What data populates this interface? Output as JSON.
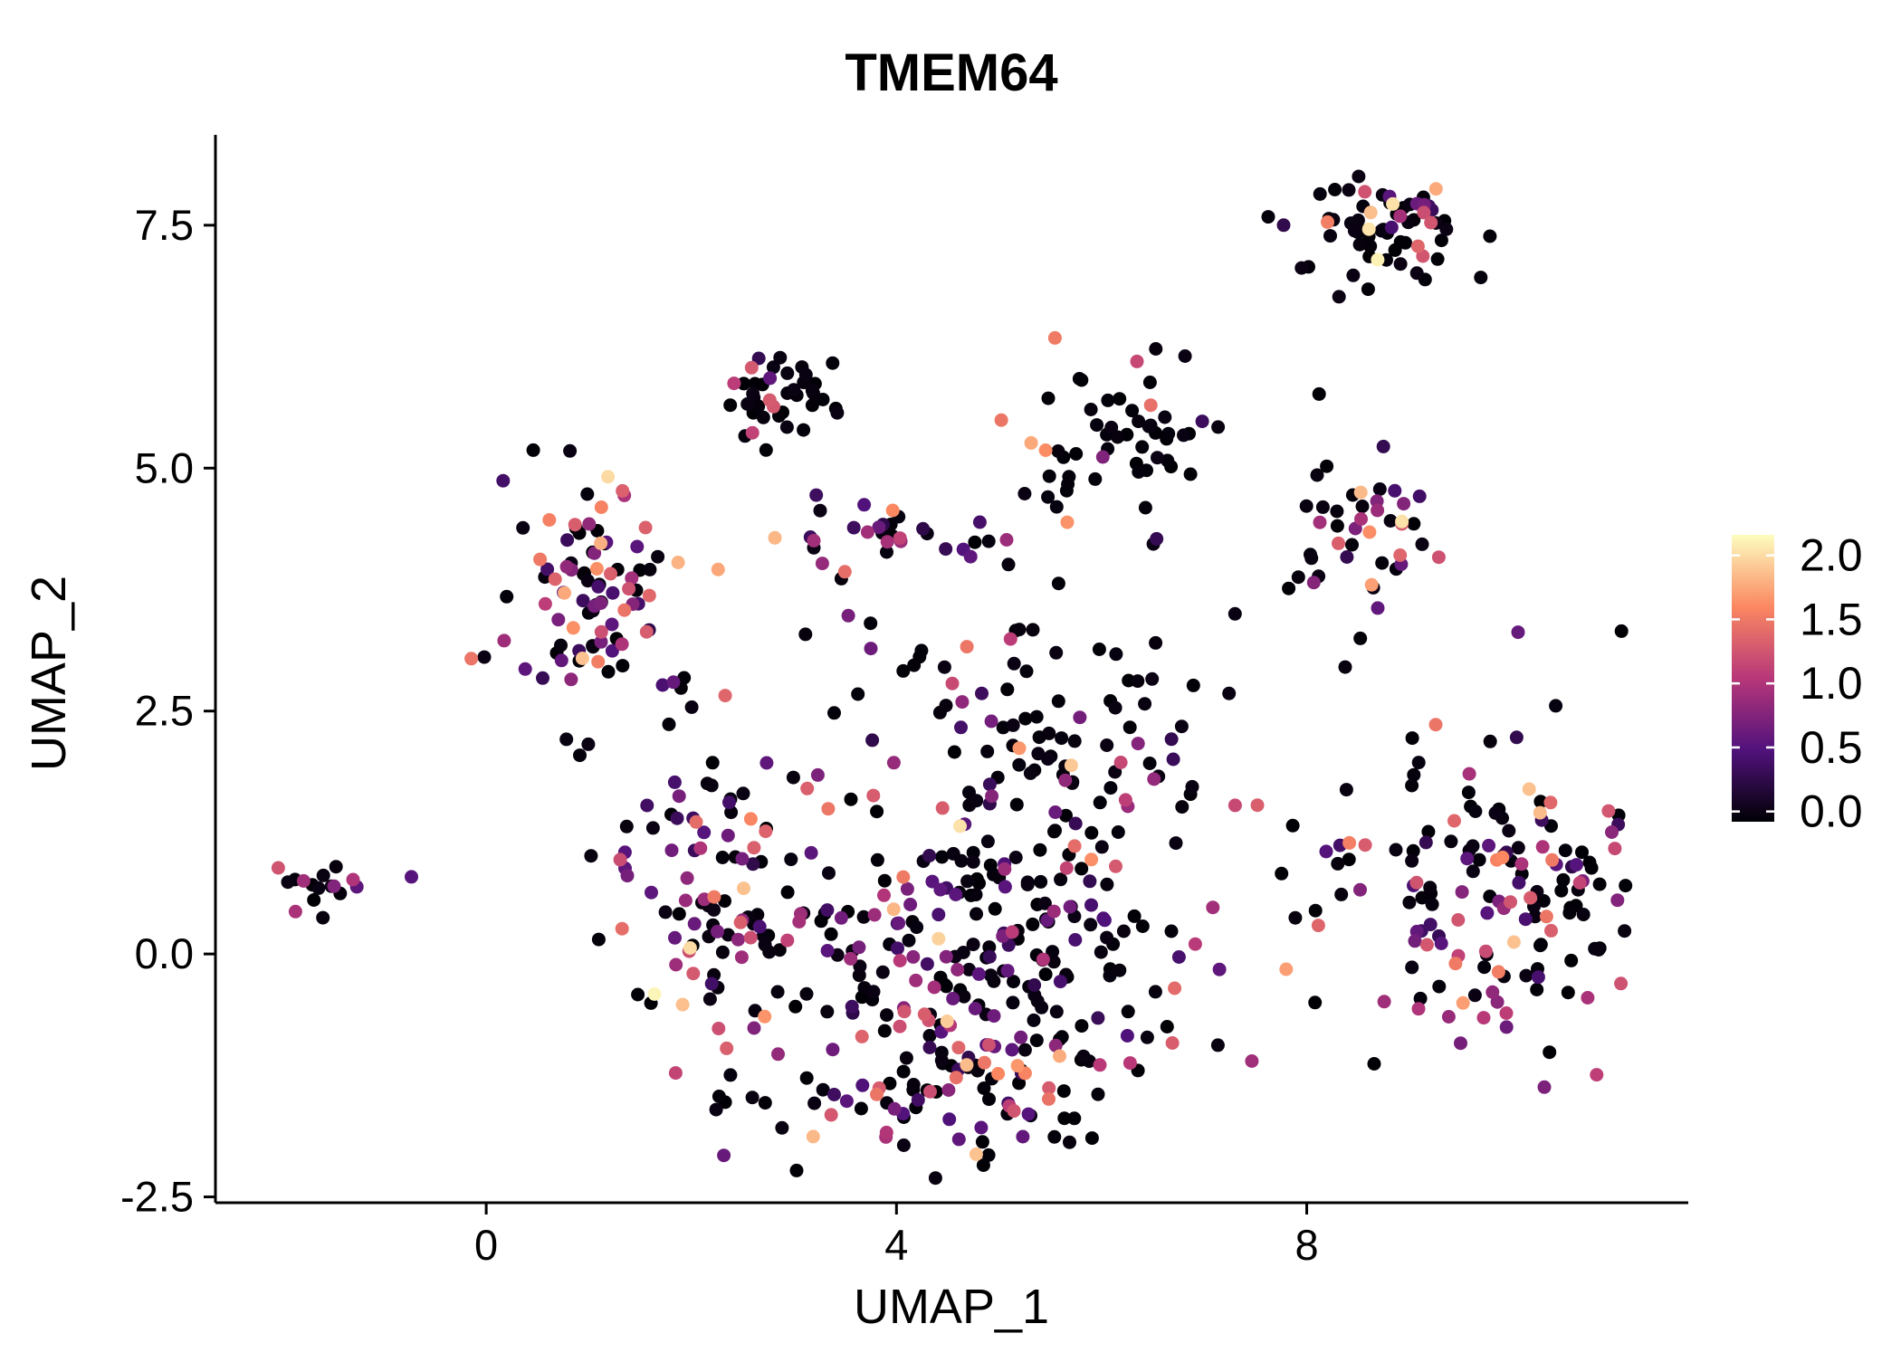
{
  "figure": {
    "background": "#ffffff"
  },
  "chart_data": {
    "type": "scatter",
    "title": "TMEM64",
    "xlabel": "UMAP_1",
    "ylabel": "UMAP_2",
    "xlim": [
      -2.64,
      11.72
    ],
    "ylim": [
      -2.56,
      8.43
    ],
    "x_ticks": [
      0,
      4,
      8
    ],
    "x_tick_labels": [
      "0",
      "4",
      "8"
    ],
    "y_ticks": [
      -2.5,
      0.0,
      2.5,
      5.0,
      7.5
    ],
    "y_tick_labels": [
      "-2.5",
      "0.0",
      "2.5",
      "5.0",
      "7.5"
    ],
    "grid": false,
    "point_radius_px": 7.5,
    "seed": 42,
    "value_max": 2.1,
    "legend": {
      "position": "right",
      "ticks": [
        0.0,
        0.5,
        1.0,
        1.5,
        2.0
      ],
      "tick_labels": [
        "0.0",
        "0.5",
        "1.0",
        "1.5",
        "2.0"
      ],
      "range": [
        -0.08,
        2.16
      ],
      "colormap": "magma",
      "colormap_stops": [
        "#000004",
        "#51127c",
        "#b73779",
        "#fb8861",
        "#fcfdbf"
      ]
    },
    "clusters": [
      {
        "name": "top-right",
        "cx": 8.75,
        "cy": 7.5,
        "sx": 0.42,
        "sy": 0.25,
        "n": 62,
        "expr": [
          {
            "p": 0.74,
            "lo": 0,
            "hi": 0.07
          },
          {
            "p": 0.1,
            "lo": 0.3,
            "hi": 0.9
          },
          {
            "p": 0.1,
            "lo": 0.9,
            "hi": 1.5
          },
          {
            "p": 0.04,
            "lo": 1.5,
            "hi": 1.9
          },
          {
            "p": 0.02,
            "lo": 1.9,
            "hi": 2.1
          }
        ]
      },
      {
        "name": "top-right-stragglers",
        "cx": 8.4,
        "cy": 6.9,
        "sx": 0.7,
        "sy": 0.25,
        "n": 6,
        "expr": [
          {
            "p": 0.8,
            "lo": 0,
            "hi": 0.07
          },
          {
            "p": 0.1,
            "lo": 0.3,
            "hi": 0.9
          },
          {
            "p": 0.07,
            "lo": 0.9,
            "hi": 1.5
          },
          {
            "p": 0.03,
            "lo": 1.5,
            "hi": 1.9
          }
        ]
      },
      {
        "name": "top-middle",
        "cx": 2.95,
        "cy": 5.75,
        "sx": 0.3,
        "sy": 0.28,
        "n": 40,
        "expr": [
          {
            "p": 0.8,
            "lo": 0,
            "hi": 0.07
          },
          {
            "p": 0.08,
            "lo": 0.3,
            "hi": 0.9
          },
          {
            "p": 0.09,
            "lo": 0.9,
            "hi": 1.5
          },
          {
            "p": 0.03,
            "lo": 1.5,
            "hi": 1.9
          }
        ]
      },
      {
        "name": "upper-right",
        "cx": 6.2,
        "cy": 5.35,
        "sx": 0.55,
        "sy": 0.38,
        "n": 55,
        "expr": [
          {
            "p": 0.88,
            "lo": 0,
            "hi": 0.07
          },
          {
            "p": 0.05,
            "lo": 0.3,
            "hi": 0.9
          },
          {
            "p": 0.05,
            "lo": 0.9,
            "hi": 1.5
          },
          {
            "p": 0.02,
            "lo": 1.5,
            "hi": 1.9
          }
        ]
      },
      {
        "name": "right-upper",
        "cx": 8.6,
        "cy": 4.3,
        "sx": 0.38,
        "sy": 0.4,
        "n": 42,
        "expr": [
          {
            "p": 0.52,
            "lo": 0,
            "hi": 0.07
          },
          {
            "p": 0.17,
            "lo": 0.3,
            "hi": 0.9
          },
          {
            "p": 0.21,
            "lo": 0.9,
            "hi": 1.5
          },
          {
            "p": 0.08,
            "lo": 1.5,
            "hi": 1.9
          },
          {
            "p": 0.02,
            "lo": 1.9,
            "hi": 2.1
          }
        ]
      },
      {
        "name": "left-upper",
        "cx": 1.1,
        "cy": 3.75,
        "sx": 0.5,
        "sy": 0.68,
        "n": 95,
        "expr": [
          {
            "p": 0.42,
            "lo": 0,
            "hi": 0.07
          },
          {
            "p": 0.33,
            "lo": 0.3,
            "hi": 0.95
          },
          {
            "p": 0.18,
            "lo": 0.95,
            "hi": 1.5
          },
          {
            "p": 0.06,
            "lo": 1.5,
            "hi": 1.85
          },
          {
            "p": 0.01,
            "lo": 1.85,
            "hi": 2.1
          }
        ]
      },
      {
        "name": "mid-band",
        "cx": 4.2,
        "cy": 4.3,
        "sx": 0.75,
        "sy": 0.18,
        "n": 28,
        "expr": [
          {
            "p": 0.45,
            "lo": 0,
            "hi": 0.07
          },
          {
            "p": 0.3,
            "lo": 0.3,
            "hi": 0.95
          },
          {
            "p": 0.2,
            "lo": 0.95,
            "hi": 1.5
          },
          {
            "p": 0.05,
            "lo": 1.5,
            "hi": 1.9
          }
        ]
      },
      {
        "name": "central-left",
        "cx": 2.1,
        "cy": 0.5,
        "sx": 0.55,
        "sy": 0.95,
        "n": 95,
        "expr": [
          {
            "p": 0.42,
            "lo": 0,
            "hi": 0.07
          },
          {
            "p": 0.33,
            "lo": 0.3,
            "hi": 0.95
          },
          {
            "p": 0.18,
            "lo": 0.95,
            "hi": 1.5
          },
          {
            "p": 0.06,
            "lo": 1.5,
            "hi": 1.85
          },
          {
            "p": 0.01,
            "lo": 1.85,
            "hi": 2.1
          }
        ]
      },
      {
        "name": "central-main",
        "cx": 4.8,
        "cy": 0.0,
        "sx": 1.05,
        "sy": 0.85,
        "n": 265,
        "expr": [
          {
            "p": 0.58,
            "lo": 0,
            "hi": 0.07
          },
          {
            "p": 0.24,
            "lo": 0.3,
            "hi": 0.95
          },
          {
            "p": 0.13,
            "lo": 0.95,
            "hi": 1.5
          },
          {
            "p": 0.045,
            "lo": 1.5,
            "hi": 1.85
          },
          {
            "p": 0.005,
            "lo": 1.85,
            "hi": 2.1
          }
        ]
      },
      {
        "name": "central-top",
        "cx": 5.5,
        "cy": 2.2,
        "sx": 0.95,
        "sy": 0.5,
        "n": 70,
        "expr": [
          {
            "p": 0.75,
            "lo": 0,
            "hi": 0.07
          },
          {
            "p": 0.13,
            "lo": 0.3,
            "hi": 0.9
          },
          {
            "p": 0.09,
            "lo": 0.9,
            "hi": 1.5
          },
          {
            "p": 0.03,
            "lo": 1.5,
            "hi": 1.9
          }
        ]
      },
      {
        "name": "central-bottom",
        "cx": 4.6,
        "cy": -1.5,
        "sx": 0.95,
        "sy": 0.3,
        "n": 60,
        "expr": [
          {
            "p": 0.58,
            "lo": 0,
            "hi": 0.07
          },
          {
            "p": 0.24,
            "lo": 0.3,
            "hi": 0.95
          },
          {
            "p": 0.13,
            "lo": 0.95,
            "hi": 1.5
          },
          {
            "p": 0.045,
            "lo": 1.5,
            "hi": 1.85
          },
          {
            "p": 0.005,
            "lo": 1.85,
            "hi": 2.1
          }
        ]
      },
      {
        "name": "far-left",
        "cx": -1.55,
        "cy": 0.7,
        "sx": 0.17,
        "sy": 0.11,
        "n": 16,
        "expr": [
          {
            "p": 0.68,
            "lo": 0,
            "hi": 0.07
          },
          {
            "p": 0.16,
            "lo": 0.3,
            "hi": 0.9
          },
          {
            "p": 0.16,
            "lo": 0.9,
            "hi": 1.4
          }
        ]
      },
      {
        "name": "far-left-dot",
        "cx": -0.72,
        "cy": 0.82,
        "sx": 0.02,
        "sy": 0.02,
        "n": 1,
        "expr": [
          {
            "p": 1.0,
            "lo": 0.55,
            "hi": 0.6
          }
        ]
      },
      {
        "name": "right-lower",
        "cx": 9.75,
        "cy": 0.55,
        "sx": 0.72,
        "sy": 0.85,
        "n": 155,
        "expr": [
          {
            "p": 0.55,
            "lo": 0,
            "hi": 0.07
          },
          {
            "p": 0.25,
            "lo": 0.3,
            "hi": 0.95
          },
          {
            "p": 0.15,
            "lo": 0.95,
            "hi": 1.5
          },
          {
            "p": 0.05,
            "lo": 1.5,
            "hi": 1.9
          }
        ]
      },
      {
        "name": "sparse-mid",
        "cx": 5.0,
        "cy": 3.3,
        "sx": 1.6,
        "sy": 0.7,
        "n": 35,
        "expr": [
          {
            "p": 0.82,
            "lo": 0,
            "hi": 0.07
          },
          {
            "p": 0.08,
            "lo": 0.3,
            "hi": 0.9
          },
          {
            "p": 0.08,
            "lo": 0.9,
            "hi": 1.5
          },
          {
            "p": 0.02,
            "lo": 1.5,
            "hi": 1.9
          }
        ]
      }
    ]
  }
}
